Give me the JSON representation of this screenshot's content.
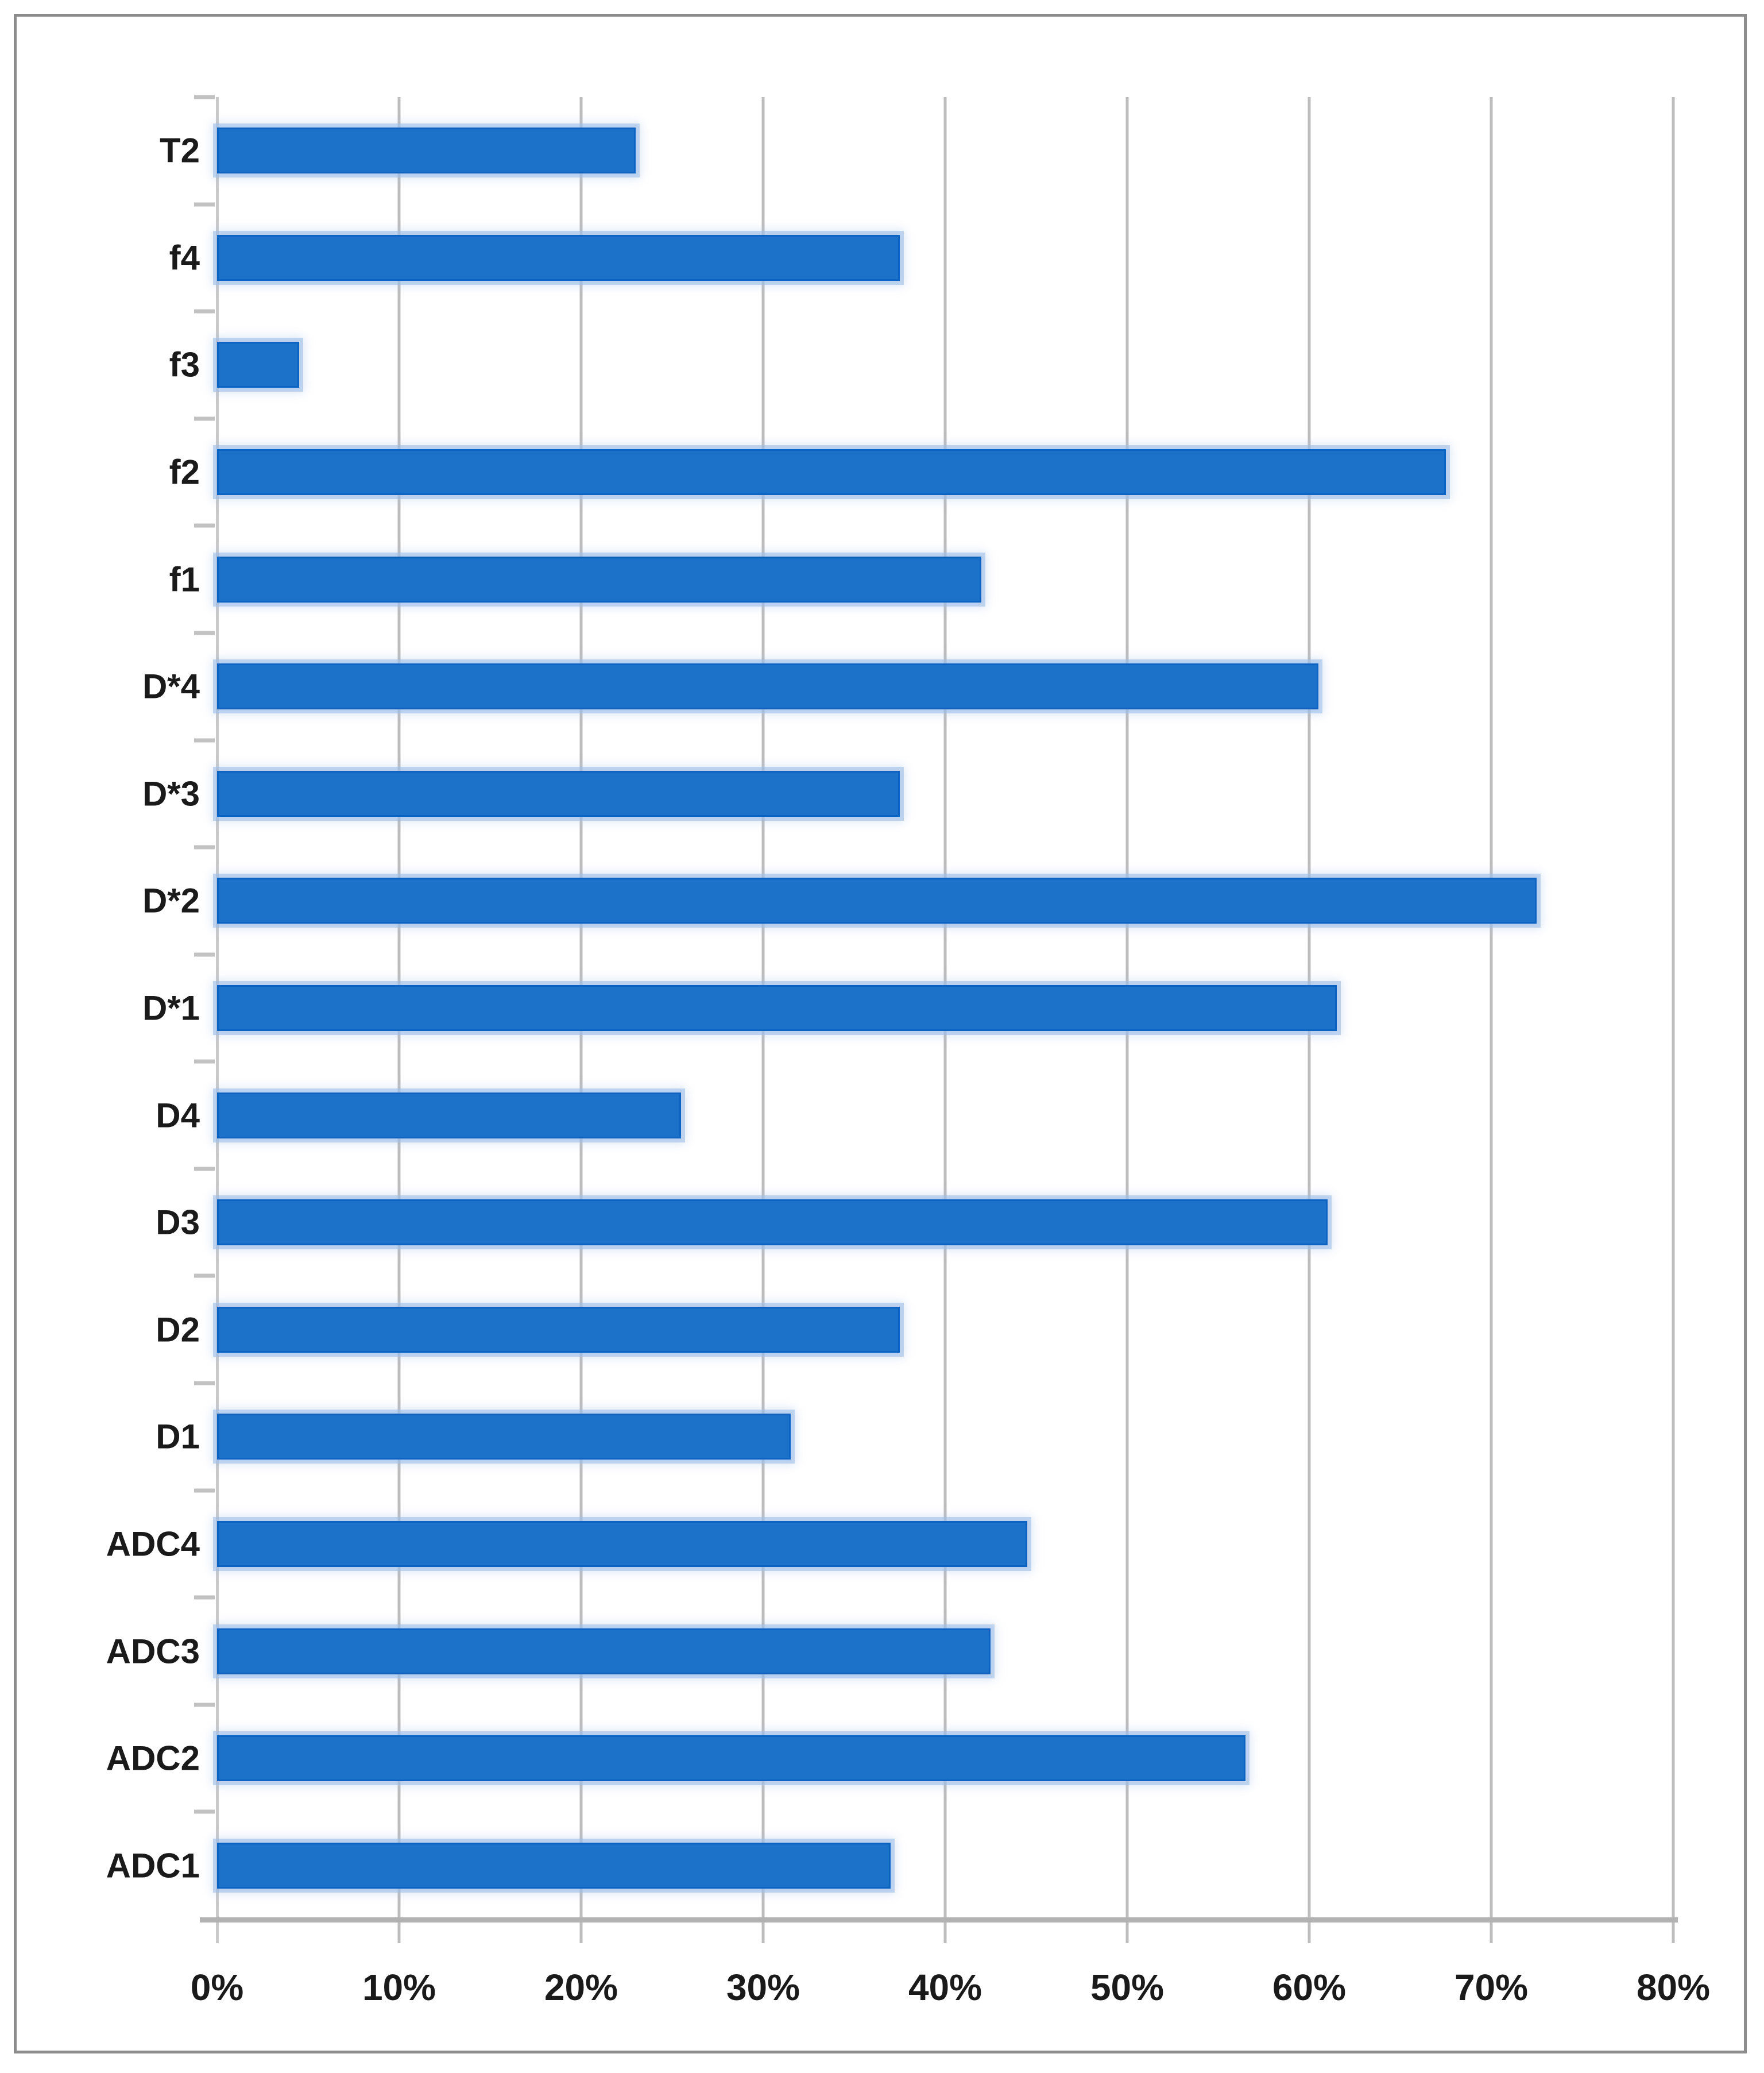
{
  "chart_data": {
    "type": "bar",
    "orientation": "horizontal",
    "title": "",
    "xlabel": "",
    "ylabel": "",
    "note": "categories listed top to bottom",
    "categories": [
      "T2",
      "f4",
      "f3",
      "f2",
      "f1",
      "D*4",
      "D*3",
      "D*2",
      "D*1",
      "D4",
      "D3",
      "D2",
      "D1",
      "ADC4",
      "ADC3",
      "ADC2",
      "ADC1"
    ],
    "values": [
      23,
      37.5,
      4.5,
      67.5,
      42,
      60.5,
      37.5,
      72.5,
      61.5,
      25.5,
      61,
      37.5,
      31.5,
      44.5,
      42.5,
      56.5,
      37
    ],
    "value_unit": "%",
    "xlim": [
      0,
      80
    ],
    "x_ticks": [
      0,
      10,
      20,
      30,
      40,
      50,
      60,
      70,
      80
    ],
    "x_tick_labels": [
      "0%",
      "10%",
      "20%",
      "30%",
      "40%",
      "50%",
      "60%",
      "70%",
      "80%"
    ],
    "gridlines": "vertical at every 10%",
    "legend": "none"
  },
  "colors": {
    "bar_fill": "#1B72C8",
    "bar_edge": "#0C63C1",
    "bar_halo": "#9EBEE8",
    "gridline": "#ADADAD",
    "y_axis_line": "#C9C9C9",
    "baseline": "#B2B2B2",
    "frame_border": "#8C8C8C",
    "label_text": "#1A1A1A",
    "background": "#FFFFFF"
  }
}
